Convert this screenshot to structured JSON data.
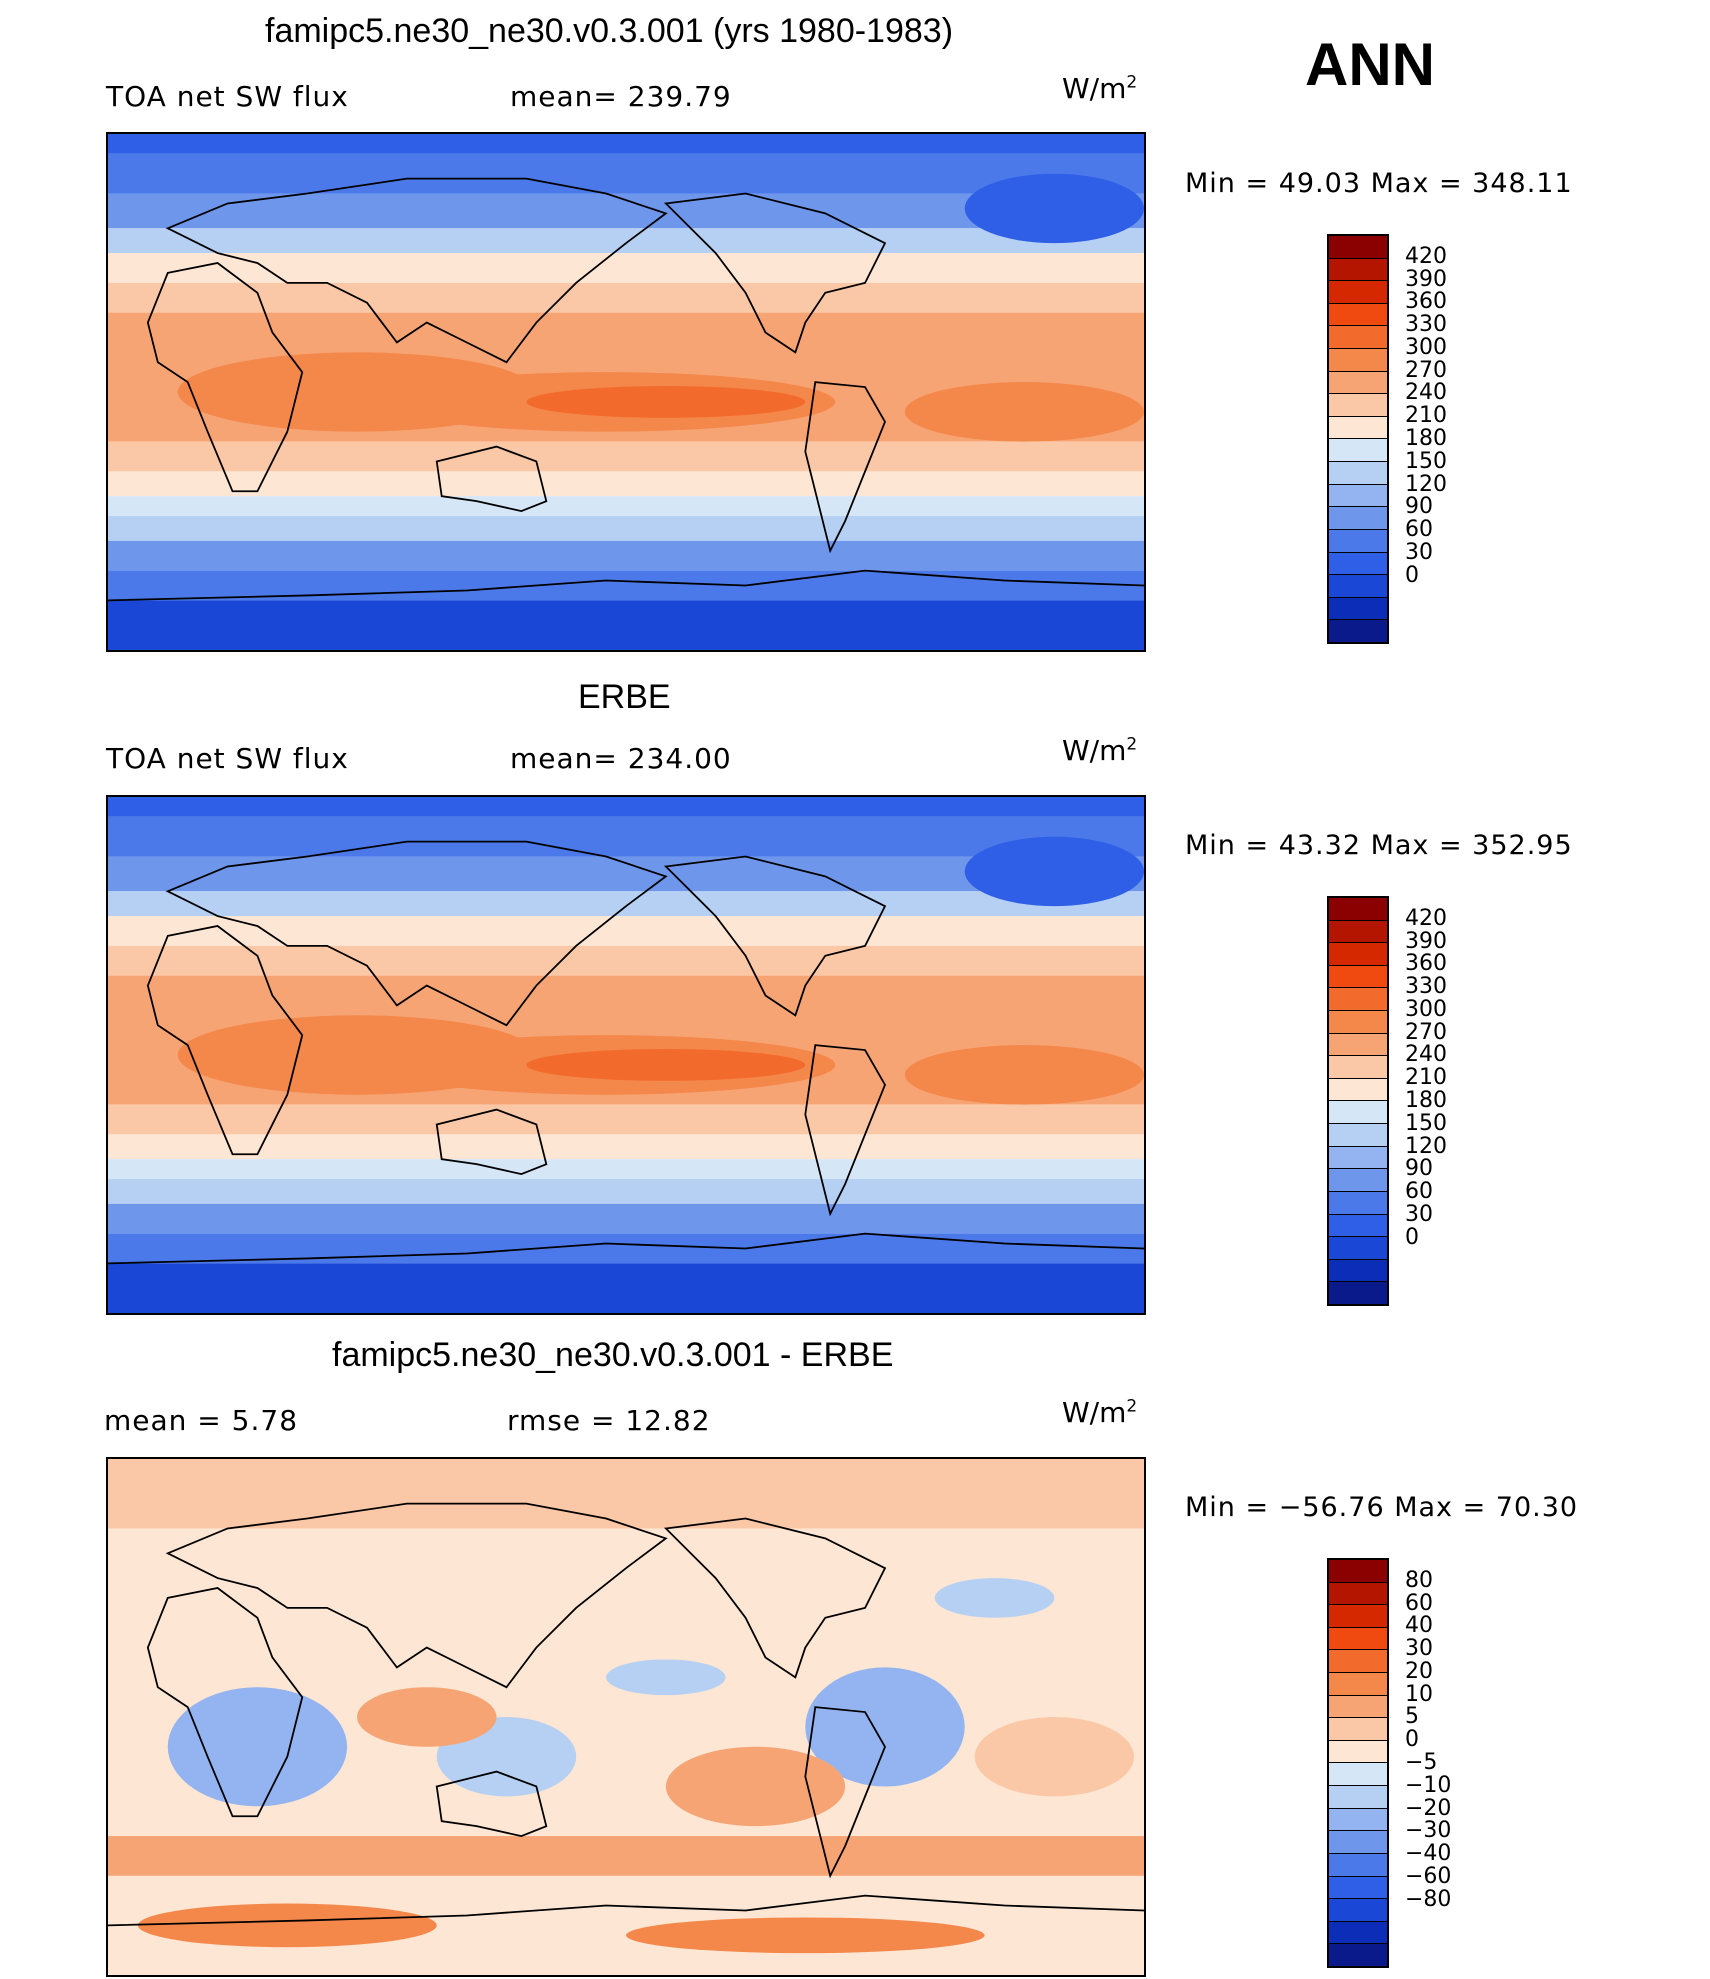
{
  "season": "ANN",
  "panels": [
    {
      "title": "famipc5.ne30_ne30.v0.3.001 (yrs 1980-1983)",
      "left_label": "TOA net SW flux",
      "center_label": "mean= 239.79",
      "units": "W/m",
      "units_sup": "2",
      "minmax": "Min  =   49.03  Max  =  348.11",
      "colorbar_ticks": [
        "420",
        "390",
        "360",
        "330",
        "300",
        "270",
        "240",
        "210",
        "180",
        "150",
        "120",
        "90",
        "60",
        "30",
        "0"
      ],
      "colorbar_colors": [
        "#8b0000",
        "#b31500",
        "#d62800",
        "#f04a10",
        "#f26b2c",
        "#f4874a",
        "#f6a474",
        "#fbc8a7",
        "#fde6d3",
        "#d5e6f7",
        "#b5d0f3",
        "#93b4f0",
        "#6e97ec",
        "#4b79ea",
        "#2f5fe6",
        "#1a47d6",
        "#0b2db8",
        "#0a1a8a"
      ],
      "mean": 239.79,
      "min": 49.03,
      "max": 348.11
    },
    {
      "title": "ERBE",
      "left_label": "TOA net SW flux",
      "center_label": "mean= 234.00",
      "units": "W/m",
      "units_sup": "2",
      "minmax": "Min  =   43.32  Max  =  352.95",
      "colorbar_ticks": [
        "420",
        "390",
        "360",
        "330",
        "300",
        "270",
        "240",
        "210",
        "180",
        "150",
        "120",
        "90",
        "60",
        "30",
        "0"
      ],
      "colorbar_colors": [
        "#8b0000",
        "#b31500",
        "#d62800",
        "#f04a10",
        "#f26b2c",
        "#f4874a",
        "#f6a474",
        "#fbc8a7",
        "#fde6d3",
        "#d5e6f7",
        "#b5d0f3",
        "#93b4f0",
        "#6e97ec",
        "#4b79ea",
        "#2f5fe6",
        "#1a47d6",
        "#0b2db8",
        "#0a1a8a"
      ],
      "mean": 234.0,
      "min": 43.32,
      "max": 352.95
    },
    {
      "title": "famipc5.ne30_ne30.v0.3.001 - ERBE",
      "left_label": "mean  =     5.78",
      "center_label": "rmse  =    12.82",
      "units": "W/m",
      "units_sup": "2",
      "minmax": "Min  = −56.76  Max  =    70.30",
      "colorbar_ticks": [
        "80",
        "60",
        "40",
        "30",
        "20",
        "10",
        "5",
        "0",
        "−5",
        "−10",
        "−20",
        "−30",
        "−40",
        "−60",
        "−80"
      ],
      "colorbar_colors": [
        "#8b0000",
        "#b31500",
        "#d62800",
        "#f04a10",
        "#f26b2c",
        "#f4874a",
        "#f6a474",
        "#fbc8a7",
        "#fde6d3",
        "#d5e6f7",
        "#b5d0f3",
        "#93b4f0",
        "#6e97ec",
        "#4b79ea",
        "#2f5fe6",
        "#1a47d6",
        "#0b2db8",
        "#0a1a8a"
      ],
      "mean": 5.78,
      "rmse": 12.82,
      "min": -56.76,
      "max": 70.3
    }
  ],
  "chart_data": [
    {
      "type": "heatmap",
      "title": "famipc5.ne30_ne30.v0.3.001 (yrs 1980-1983)",
      "variable": "TOA net SW flux",
      "units": "W/m2",
      "mean": 239.79,
      "min": 49.03,
      "max": 348.11,
      "colorbar_levels": [
        0,
        30,
        60,
        90,
        120,
        150,
        180,
        210,
        240,
        270,
        300,
        330,
        360,
        390,
        420
      ],
      "zonal_mean_profile": {
        "lat": [
          90,
          75,
          60,
          45,
          30,
          15,
          0,
          -15,
          -30,
          -45,
          -60,
          -75,
          -90
        ],
        "values": [
          55,
          90,
          120,
          185,
          260,
          300,
          305,
          300,
          265,
          185,
          120,
          60,
          45
        ]
      }
    },
    {
      "type": "heatmap",
      "title": "ERBE",
      "variable": "TOA net SW flux",
      "units": "W/m2",
      "mean": 234.0,
      "min": 43.32,
      "max": 352.95,
      "colorbar_levels": [
        0,
        30,
        60,
        90,
        120,
        150,
        180,
        210,
        240,
        270,
        300,
        330,
        360,
        390,
        420
      ],
      "zonal_mean_profile": {
        "lat": [
          90,
          75,
          60,
          45,
          30,
          15,
          0,
          -15,
          -30,
          -45,
          -60,
          -75,
          -90
        ],
        "values": [
          50,
          85,
          115,
          175,
          255,
          300,
          310,
          300,
          260,
          175,
          110,
          55,
          45
        ]
      }
    },
    {
      "type": "heatmap",
      "title": "famipc5.ne30_ne30.v0.3.001 - ERBE",
      "units": "W/m2",
      "mean": 5.78,
      "rmse": 12.82,
      "min": -56.76,
      "max": 70.3,
      "colorbar_levels": [
        -80,
        -60,
        -40,
        -30,
        -20,
        -10,
        -5,
        0,
        5,
        10,
        20,
        30,
        40,
        60,
        80
      ]
    }
  ]
}
